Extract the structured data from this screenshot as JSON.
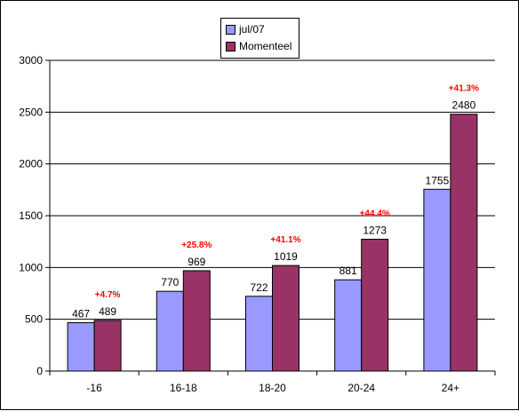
{
  "chart_data": {
    "type": "bar",
    "categories": [
      "-16",
      "16-18",
      "18-20",
      "20-24",
      "24+"
    ],
    "series": [
      {
        "name": "jul/07",
        "color": "#9999ff",
        "values": [
          467,
          770,
          722,
          881,
          1755
        ]
      },
      {
        "name": "Momenteel",
        "color": "#993366",
        "values": [
          489,
          969,
          1019,
          1273,
          2480
        ]
      }
    ],
    "data_labels": [
      [
        "467",
        "770",
        "722",
        "881",
        "1755"
      ],
      [
        "489",
        "969",
        "1019",
        "1273",
        "2480"
      ]
    ],
    "annotations": [
      "+4.7%",
      "+25.8%",
      "+41.1%",
      "+44.4%",
      "+41.3%"
    ],
    "annotation_color": "#ff0000",
    "ylim": [
      0,
      3000
    ],
    "yticks": [
      "0",
      "500",
      "1000",
      "1500",
      "2000",
      "2500",
      "3000"
    ],
    "grid": true,
    "legend_position": "top-center",
    "title": "",
    "xlabel": "",
    "ylabel": ""
  }
}
